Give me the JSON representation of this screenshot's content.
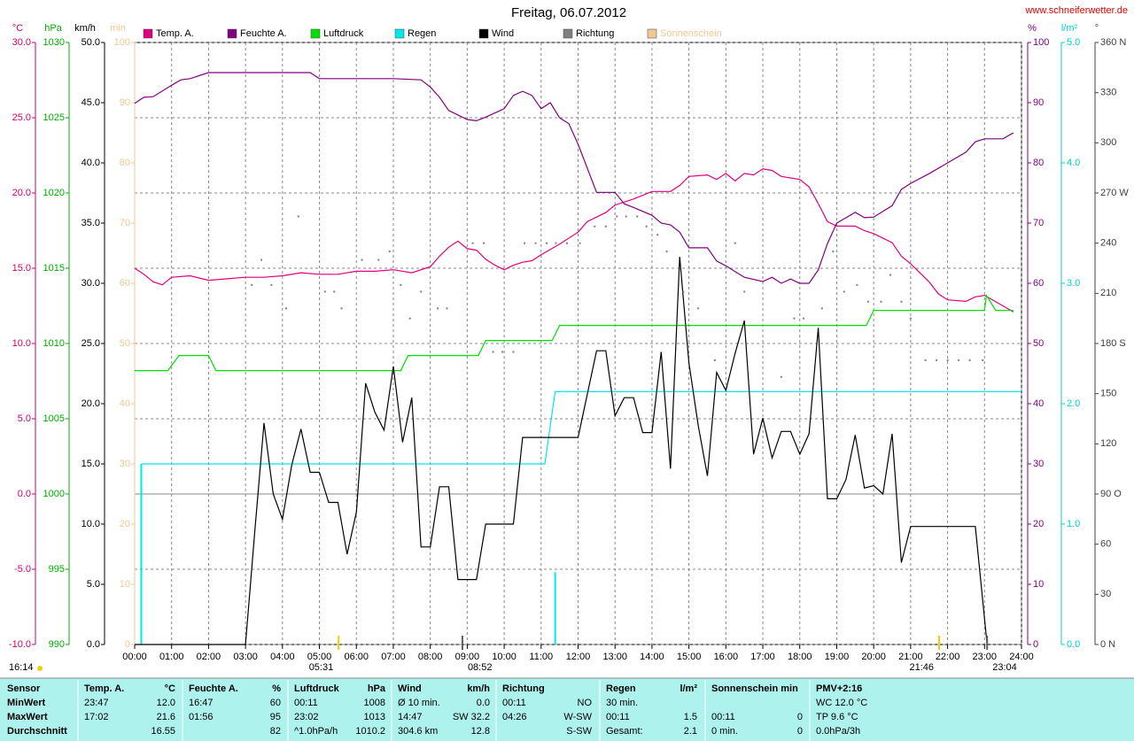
{
  "chart_data": {
    "type": "line",
    "title": "Freitag, 06.07.2012",
    "source": "www.schneiferwetter.de",
    "footer_left": "16:14",
    "xlim": [
      0,
      24
    ],
    "xticks": [
      {
        "value": 0,
        "label": "00:00"
      },
      {
        "value": 1,
        "label": "01:00"
      },
      {
        "value": 2,
        "label": "02:00"
      },
      {
        "value": 3,
        "label": "03:00"
      },
      {
        "value": 4,
        "label": "04:00"
      },
      {
        "value": 5,
        "label": "05:00"
      },
      {
        "value": 6,
        "label": "06:00"
      },
      {
        "value": 7,
        "label": "07:00"
      },
      {
        "value": 8,
        "label": "08:00"
      },
      {
        "value": 9,
        "label": "09:00"
      },
      {
        "value": 10,
        "label": "10:00"
      },
      {
        "value": 11,
        "label": "11:00"
      },
      {
        "value": 12,
        "label": "12:00"
      },
      {
        "value": 13,
        "label": "13:00"
      },
      {
        "value": 14,
        "label": "14:00"
      },
      {
        "value": 15,
        "label": "15:00"
      },
      {
        "value": 16,
        "label": "16:00"
      },
      {
        "value": 17,
        "label": "17:00"
      },
      {
        "value": 18,
        "label": "18:00"
      },
      {
        "value": 19,
        "label": "19:00"
      },
      {
        "value": 20,
        "label": "20:00"
      },
      {
        "value": 21,
        "label": "21:00"
      },
      {
        "value": 22,
        "label": "22:00"
      },
      {
        "value": 23,
        "label": "23:00"
      },
      {
        "value": 24,
        "label": "24:00"
      }
    ],
    "grid": true,
    "grid_axis": 0,
    "reference_line": {
      "axis": 0,
      "value": 0
    },
    "axes": [
      {
        "name": "°C",
        "side": "left",
        "color": "#d0006f",
        "lim": [
          -10,
          30
        ],
        "ticks": [
          {
            "value": 30,
            "label": "30.0"
          },
          {
            "value": 25,
            "label": "25.0"
          },
          {
            "value": 20,
            "label": "20.0"
          },
          {
            "value": 15,
            "label": "15.0"
          },
          {
            "value": 10,
            "label": "10.0"
          },
          {
            "value": 5,
            "label": "5.0"
          },
          {
            "value": 0,
            "label": "0.0"
          },
          {
            "value": -5,
            "label": "-5.0"
          },
          {
            "value": -10,
            "label": "-10.0"
          }
        ]
      },
      {
        "name": "hPa",
        "side": "left",
        "color": "#00b000",
        "lim": [
          990,
          1030
        ],
        "ticks": [
          1030,
          1025,
          1020,
          1015,
          1010,
          1005,
          1000,
          995,
          990
        ]
      },
      {
        "name": "km/h",
        "side": "left",
        "color": "#000000",
        "lim": [
          0,
          50
        ],
        "ticks": [
          {
            "value": 50,
            "label": "50.0"
          },
          {
            "value": 45,
            "label": "45.0"
          },
          {
            "value": 40,
            "label": "40.0"
          },
          {
            "value": 35,
            "label": "35.0"
          },
          {
            "value": 30,
            "label": "30.0"
          },
          {
            "value": 25,
            "label": "25.0"
          },
          {
            "value": 20,
            "label": "20.0"
          },
          {
            "value": 15,
            "label": "15.0"
          },
          {
            "value": 10,
            "label": "10.0"
          },
          {
            "value": 5,
            "label": "5.0"
          },
          {
            "value": 0,
            "label": "0.0"
          }
        ]
      },
      {
        "name": "min",
        "side": "left",
        "color": "#f0c890",
        "lim": [
          0,
          100
        ],
        "ticks": [
          100,
          90,
          80,
          70,
          60,
          50,
          40,
          30,
          20,
          10,
          0
        ]
      },
      {
        "name": "%",
        "side": "right",
        "color": "#800080",
        "lim": [
          0,
          100
        ],
        "ticks": [
          100,
          90,
          80,
          70,
          60,
          50,
          40,
          30,
          20,
          10,
          0
        ]
      },
      {
        "name": "l/m²",
        "side": "right",
        "color": "#00d0d0",
        "lim": [
          0,
          5
        ],
        "ticks": [
          {
            "value": 5,
            "label": "5.0"
          },
          {
            "value": 4,
            "label": "4.0"
          },
          {
            "value": 3,
            "label": "3.0"
          },
          {
            "value": 2,
            "label": "2.0"
          },
          {
            "value": 1,
            "label": "1.0"
          },
          {
            "value": 0,
            "label": "0.0"
          }
        ]
      },
      {
        "name": "°",
        "side": "right",
        "color": "#404040",
        "lim": [
          0,
          360
        ],
        "ticks": [
          {
            "value": 360,
            "label": "360 N"
          },
          330,
          300,
          {
            "value": 270,
            "label": "270 W"
          },
          240,
          210,
          {
            "value": 180,
            "label": "180 S"
          },
          150,
          120,
          {
            "value": 90,
            "label": "90 O"
          },
          60,
          30,
          {
            "value": 0,
            "label": "0 N"
          }
        ]
      }
    ],
    "series": [
      {
        "name": "Temp. A.",
        "color": "#e0007f",
        "axis": 0,
        "marker": "line",
        "x": [
          0,
          0.25,
          0.5,
          0.75,
          1,
          1.5,
          2,
          2.5,
          3,
          3.5,
          4,
          4.5,
          5,
          5.5,
          6,
          6.5,
          7,
          7.5,
          8,
          8.25,
          8.5,
          8.75,
          9,
          9.25,
          9.5,
          9.75,
          10,
          10.25,
          10.5,
          10.75,
          11,
          11.5,
          12,
          12.25,
          12.5,
          12.75,
          13,
          13.5,
          14,
          14.5,
          14.75,
          15,
          15.5,
          15.75,
          16,
          16.25,
          16.5,
          16.75,
          17,
          17.25,
          17.5,
          18,
          18.25,
          18.5,
          18.75,
          19,
          19.5,
          19.75,
          20,
          20.5,
          20.75,
          21,
          21.5,
          21.75,
          22,
          22.5,
          22.75,
          23,
          23.5,
          23.78
        ],
        "values": [
          15.0,
          14.6,
          14.1,
          13.9,
          14.4,
          14.5,
          14.2,
          14.3,
          14.4,
          14.4,
          14.5,
          14.7,
          14.6,
          14.6,
          14.8,
          14.8,
          14.9,
          14.7,
          15.1,
          15.8,
          16.4,
          16.8,
          16.3,
          16.2,
          15.6,
          15.2,
          14.9,
          15.2,
          15.4,
          15.5,
          15.9,
          16.6,
          17.4,
          18.1,
          18.4,
          18.7,
          19.2,
          19.6,
          20.1,
          20.1,
          20.5,
          21.1,
          21.2,
          20.9,
          21.3,
          20.8,
          21.3,
          21.2,
          21.6,
          21.5,
          21.1,
          20.9,
          20.4,
          19.3,
          18.1,
          17.8,
          17.8,
          17.5,
          17.3,
          16.7,
          15.8,
          15.3,
          14.1,
          13.3,
          12.9,
          12.8,
          13.1,
          13.2,
          12.5,
          12.1
        ]
      },
      {
        "name": "Feuchte A.",
        "color": "#800080",
        "axis": 4,
        "marker": "line",
        "x": [
          0,
          0.25,
          0.5,
          1,
          1.25,
          1.5,
          2,
          3,
          4,
          4.75,
          5,
          6,
          7,
          7.75,
          8,
          8.25,
          8.5,
          9,
          9.25,
          9.5,
          10,
          10.25,
          10.5,
          10.75,
          11,
          11.25,
          11.5,
          11.75,
          12,
          12.5,
          13,
          13.25,
          13.5,
          14,
          14.25,
          14.5,
          14.75,
          15,
          15.5,
          15.75,
          16,
          16.5,
          17,
          17.25,
          17.5,
          17.75,
          18,
          18.25,
          18.5,
          18.75,
          19,
          19.5,
          19.75,
          20,
          20.5,
          20.75,
          21,
          21.5,
          22,
          22.5,
          22.75,
          23,
          23.5,
          23.78
        ],
        "values": [
          89.9,
          90.9,
          91,
          92.9,
          93.8,
          94,
          95,
          95,
          95,
          95,
          94,
          94,
          94,
          93.8,
          92.6,
          90.9,
          88.7,
          87.2,
          87,
          87.6,
          89,
          91.2,
          91.9,
          91.2,
          89,
          90,
          87.5,
          86.5,
          83.1,
          75.1,
          75.1,
          73.2,
          72.6,
          71.3,
          70,
          69.7,
          68.5,
          65.9,
          65.9,
          63.7,
          62.9,
          61,
          60.3,
          61,
          60,
          60.7,
          60,
          60,
          62.2,
          66.6,
          70,
          71.8,
          70.9,
          71,
          72.9,
          75.6,
          76.6,
          78.2,
          80,
          81.8,
          83.5,
          84,
          84,
          85
        ]
      },
      {
        "name": "Luftdruck",
        "color": "#00e000",
        "axis": 1,
        "marker": "line",
        "x": [
          0,
          0.9,
          1.2,
          2,
          2.2,
          7.2,
          7.4,
          9.3,
          9.5,
          11.3,
          11.5,
          19.8,
          20,
          23,
          23.05,
          23.3,
          23.78
        ],
        "values": [
          1008.2,
          1008.2,
          1009.2,
          1009.2,
          1008.2,
          1008.2,
          1009.2,
          1009.2,
          1010.2,
          1010.2,
          1011.2,
          1011.2,
          1012.2,
          1012.2,
          1013.2,
          1012.2,
          1012.2
        ]
      },
      {
        "name": "Regen",
        "color": "#00e8e8",
        "axis": 5,
        "marker": "line",
        "x": [
          0.18,
          11.1,
          11.38,
          24
        ],
        "values": [
          1.5,
          1.5,
          2.1,
          2.1
        ]
      },
      {
        "name": "Wind",
        "color": "#000000",
        "axis": 2,
        "marker": "line",
        "x": [
          0,
          3,
          3.25,
          3.5,
          3.75,
          4,
          4.25,
          4.5,
          4.75,
          5,
          5.25,
          5.5,
          5.75,
          6,
          6.25,
          6.5,
          6.75,
          7,
          7.25,
          7.5,
          7.75,
          8,
          8.25,
          8.5,
          8.75,
          9.25,
          9.5,
          10.25,
          10.5,
          12,
          12.5,
          12.75,
          13,
          13.25,
          13.5,
          13.75,
          14,
          14.25,
          14.5,
          14.75,
          15,
          15.25,
          15.5,
          15.75,
          16,
          16.25,
          16.5,
          16.75,
          17,
          17.25,
          17.5,
          17.75,
          18,
          18.25,
          18.5,
          18.75,
          19,
          19.25,
          19.5,
          19.75,
          20,
          20.25,
          20.5,
          20.75,
          21,
          22.75,
          23.07
        ],
        "values": [
          0,
          0,
          9.4,
          18.4,
          12.5,
          10.4,
          14.9,
          17.9,
          14.3,
          14.3,
          11.8,
          11.8,
          7.5,
          11,
          21.7,
          19.3,
          17.8,
          23.1,
          16.8,
          20.5,
          8.1,
          8.1,
          13.1,
          13.1,
          5.4,
          5.4,
          10,
          10,
          17.2,
          17.2,
          24.4,
          24.4,
          19,
          20.5,
          20.5,
          17.6,
          17.6,
          24.3,
          14.6,
          32.2,
          23.4,
          18.2,
          14,
          22.6,
          21.1,
          24.2,
          26.9,
          15.8,
          18.8,
          15.5,
          17.7,
          17.7,
          15.8,
          17.5,
          26.3,
          12.1,
          12.1,
          13.7,
          17.4,
          13,
          13.2,
          12.5,
          17.5,
          6.8,
          9.8,
          9.8,
          0
        ]
      },
      {
        "name": "Richtung",
        "color": "#808080",
        "axis": 6,
        "marker": "dot",
        "x": [
          3.17,
          3.43,
          3.7,
          4.1,
          4.43,
          5.15,
          5.4,
          5.6,
          6.15,
          6.6,
          6.9,
          7.2,
          7.45,
          7.75,
          8.2,
          8.45,
          9.15,
          9.45,
          9.7,
          9.95,
          10.25,
          10.55,
          10.85,
          11.15,
          11.4,
          11.7,
          12.05,
          12.45,
          12.75,
          13.05,
          13.3,
          13.6,
          13.85,
          14.15,
          14.4,
          14.85,
          15.25,
          15.7,
          16.25,
          16.5,
          17.5,
          17.85,
          18.1,
          18.6,
          18.9,
          19.2,
          19.55,
          19.85,
          20.2,
          20.45,
          20.75,
          21.0,
          21.4,
          21.7,
          22.0,
          22.3,
          22.6,
          22.95
        ],
        "values": [
          215,
          230,
          215,
          201,
          256,
          211,
          211,
          201,
          230,
          230,
          235,
          215,
          195,
          211,
          201,
          201,
          240,
          240,
          175,
          175,
          175,
          240,
          240,
          240,
          240,
          240,
          240,
          250,
          250,
          256,
          256,
          256,
          250,
          245,
          235,
          211,
          201,
          170,
          240,
          211,
          160,
          195,
          195,
          201,
          235,
          211,
          215,
          205,
          205,
          221,
          205,
          195,
          170,
          170,
          170,
          170,
          170,
          170
        ]
      },
      {
        "name": "Sonnenschein",
        "color": "#f0c890",
        "axis": 3,
        "marker": "line",
        "x": [],
        "values": []
      }
    ],
    "rain_bars": {
      "axis": 5,
      "color": "#00e8e8",
      "x": [
        0.18,
        11.38
      ],
      "values": [
        1.5,
        0.6
      ]
    },
    "annotations": [
      {
        "text": "05:31",
        "x": 5.52,
        "color": "#f0d000"
      },
      {
        "text": "08:52",
        "x": 8.87,
        "color": "#606060"
      },
      {
        "text": "21:46",
        "x": 21.77,
        "color": "#f0d000"
      },
      {
        "text": "23:04",
        "x": 23.07,
        "color": "#606060"
      }
    ]
  },
  "table": {
    "row_labels": [
      "Sensor",
      "MinWert",
      "MaxWert",
      "Durchschnitt"
    ],
    "columns": [
      {
        "header": "Temp. A.",
        "unit": "°C",
        "rows": [
          [
            "23:47",
            "12.0"
          ],
          [
            "17:02",
            "21.6"
          ],
          [
            null,
            "16.55"
          ]
        ]
      },
      {
        "header": "Feuchte A.",
        "unit": "%",
        "rows": [
          [
            "16:47",
            "60"
          ],
          [
            "01:56",
            "95"
          ],
          [
            null,
            "82"
          ]
        ]
      },
      {
        "header": "Luftdruck",
        "unit": "hPa",
        "rows": [
          [
            "00:11",
            "1008"
          ],
          [
            "23:02",
            "1013"
          ],
          [
            "^1.0hPa/h",
            "1010.2"
          ]
        ]
      },
      {
        "header": "Wind",
        "unit": "km/h",
        "rows": [
          [
            "Ø 10 min.",
            "0.0"
          ],
          [
            "14:47",
            "SW 32.2"
          ],
          [
            "304.6 km",
            "12.8"
          ]
        ]
      },
      {
        "header": "Richtung",
        "unit": null,
        "rows": [
          [
            "00:11",
            "NO"
          ],
          [
            "04:26",
            "W-SW"
          ],
          [
            null,
            "S-SW"
          ]
        ]
      },
      {
        "header": "Regen",
        "unit": "l/m²",
        "rows": [
          [
            "30 min.",
            null
          ],
          [
            "00:11",
            "1.5"
          ],
          [
            "Gesamt:",
            "2.1"
          ]
        ]
      },
      {
        "header": "Sonnenschein min",
        "unit": null,
        "rows": [
          [
            null,
            null
          ],
          [
            "00:11",
            "0"
          ],
          [
            "0 min.",
            "0"
          ]
        ]
      },
      {
        "header": "PMV+2:16",
        "unit": null,
        "rows": [
          [
            "WC 12.0 °C",
            null
          ],
          [
            "TP 9.6 °C",
            null
          ],
          [
            "0.0hPa/3h",
            null
          ]
        ]
      }
    ]
  }
}
